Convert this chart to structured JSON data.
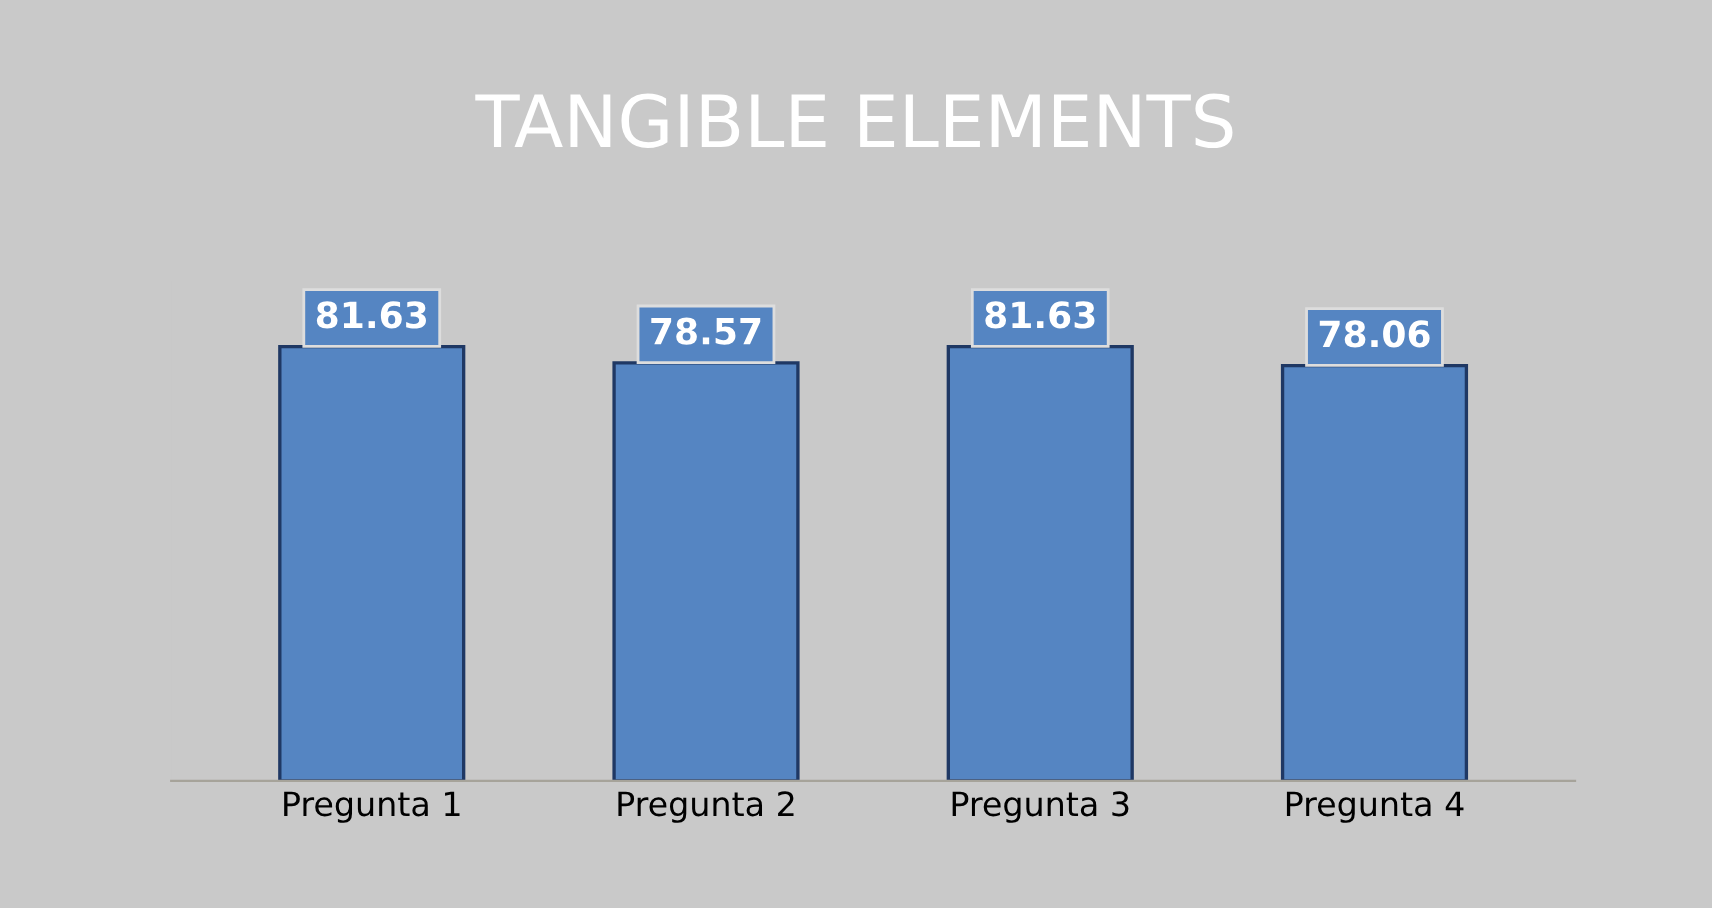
{
  "chart_data": {
    "type": "bar",
    "title": "TANGIBLE ELEMENTS",
    "categories": [
      "Pregunta 1",
      "Pregunta 2",
      "Pregunta 3",
      "Pregunta 4"
    ],
    "values": [
      81.63,
      78.57,
      81.63,
      78.06
    ],
    "color": "#5585c2",
    "data_labels": true,
    "grid": false,
    "legend": false
  }
}
